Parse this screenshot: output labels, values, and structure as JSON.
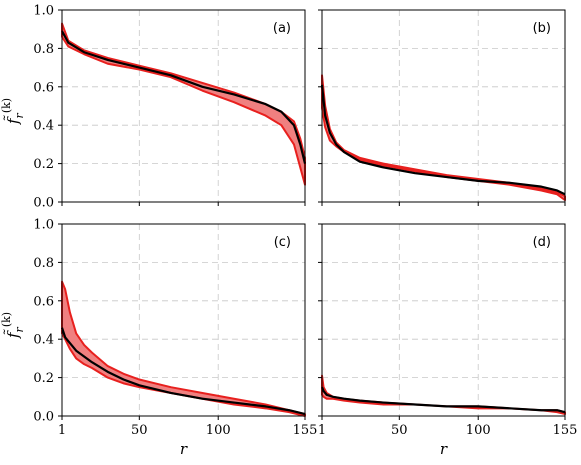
{
  "chart_data": [
    {
      "type": "area",
      "panel_label": "(a)",
      "xlabel": "r",
      "ylabel": "f̃_r^(k)",
      "xlim": [
        1,
        155
      ],
      "ylim": [
        0.0,
        1.0
      ],
      "xticks": [
        1,
        50,
        100,
        155
      ],
      "yticks": [
        0.0,
        0.2,
        0.4,
        0.6,
        0.8,
        1.0
      ],
      "grid": true,
      "x": [
        1,
        5,
        15,
        30,
        50,
        70,
        90,
        110,
        130,
        140,
        148,
        152,
        155
      ],
      "series": [
        {
          "role": "band_upper",
          "values": [
            0.93,
            0.84,
            0.79,
            0.75,
            0.71,
            0.67,
            0.62,
            0.57,
            0.51,
            0.47,
            0.42,
            0.33,
            0.23
          ]
        },
        {
          "role": "band_lower",
          "values": [
            0.86,
            0.81,
            0.77,
            0.72,
            0.69,
            0.65,
            0.58,
            0.52,
            0.45,
            0.4,
            0.3,
            0.18,
            0.09
          ]
        },
        {
          "role": "mean",
          "values": [
            0.89,
            0.83,
            0.78,
            0.74,
            0.7,
            0.66,
            0.6,
            0.56,
            0.51,
            0.47,
            0.4,
            0.3,
            0.2
          ]
        }
      ]
    },
    {
      "type": "area",
      "panel_label": "(b)",
      "xlabel": "r",
      "ylabel": "",
      "xlim": [
        1,
        155
      ],
      "ylim": [
        0.0,
        1.0
      ],
      "xticks": [
        1,
        50,
        100,
        155
      ],
      "yticks": [
        0.0,
        0.2,
        0.4,
        0.6,
        0.8,
        1.0
      ],
      "grid": true,
      "x": [
        1,
        3,
        6,
        10,
        15,
        25,
        40,
        60,
        80,
        100,
        120,
        140,
        150,
        155
      ],
      "series": [
        {
          "role": "band_upper",
          "values": [
            0.66,
            0.5,
            0.38,
            0.31,
            0.27,
            0.23,
            0.2,
            0.17,
            0.14,
            0.12,
            0.1,
            0.07,
            0.05,
            0.03
          ]
        },
        {
          "role": "band_lower",
          "values": [
            0.49,
            0.39,
            0.32,
            0.29,
            0.26,
            0.22,
            0.19,
            0.16,
            0.13,
            0.11,
            0.09,
            0.06,
            0.04,
            0.01
          ]
        },
        {
          "role": "mean",
          "values": [
            0.61,
            0.45,
            0.36,
            0.3,
            0.26,
            0.21,
            0.18,
            0.15,
            0.13,
            0.11,
            0.1,
            0.08,
            0.06,
            0.04
          ]
        }
      ]
    },
    {
      "type": "area",
      "panel_label": "(c)",
      "xlabel": "r",
      "ylabel": "f̃_r^(k)",
      "xlim": [
        1,
        155
      ],
      "ylim": [
        0.0,
        1.0
      ],
      "xticks": [
        1,
        50,
        100,
        155
      ],
      "yticks": [
        0.0,
        0.2,
        0.4,
        0.6,
        0.8,
        1.0
      ],
      "grid": true,
      "x": [
        1,
        3,
        6,
        10,
        15,
        20,
        30,
        40,
        50,
        70,
        90,
        110,
        130,
        145,
        155
      ],
      "series": [
        {
          "role": "band_upper",
          "values": [
            0.7,
            0.66,
            0.54,
            0.43,
            0.37,
            0.33,
            0.26,
            0.22,
            0.19,
            0.15,
            0.12,
            0.09,
            0.06,
            0.03,
            0.01
          ]
        },
        {
          "role": "band_lower",
          "values": [
            0.43,
            0.4,
            0.35,
            0.3,
            0.27,
            0.25,
            0.2,
            0.17,
            0.15,
            0.12,
            0.09,
            0.06,
            0.04,
            0.02,
            0.0
          ]
        },
        {
          "role": "mean",
          "values": [
            0.46,
            0.41,
            0.38,
            0.34,
            0.31,
            0.28,
            0.23,
            0.19,
            0.16,
            0.12,
            0.09,
            0.07,
            0.05,
            0.03,
            0.01
          ]
        }
      ]
    },
    {
      "type": "area",
      "panel_label": "(d)",
      "xlabel": "r",
      "ylabel": "",
      "xlim": [
        1,
        155
      ],
      "ylim": [
        0.0,
        1.0
      ],
      "xticks": [
        1,
        50,
        100,
        155
      ],
      "yticks": [
        0.0,
        0.2,
        0.4,
        0.6,
        0.8,
        1.0
      ],
      "grid": true,
      "x": [
        1,
        2,
        4,
        8,
        15,
        25,
        40,
        60,
        80,
        100,
        120,
        140,
        150,
        155
      ],
      "series": [
        {
          "role": "band_upper",
          "values": [
            0.21,
            0.15,
            0.12,
            0.1,
            0.09,
            0.08,
            0.07,
            0.06,
            0.05,
            0.05,
            0.04,
            0.03,
            0.03,
            0.02
          ]
        },
        {
          "role": "band_lower",
          "values": [
            0.11,
            0.1,
            0.09,
            0.09,
            0.08,
            0.07,
            0.06,
            0.06,
            0.05,
            0.04,
            0.04,
            0.03,
            0.02,
            0.01
          ]
        },
        {
          "role": "mean",
          "values": [
            0.15,
            0.13,
            0.11,
            0.1,
            0.09,
            0.08,
            0.07,
            0.06,
            0.05,
            0.05,
            0.04,
            0.03,
            0.03,
            0.02
          ]
        }
      ]
    }
  ]
}
